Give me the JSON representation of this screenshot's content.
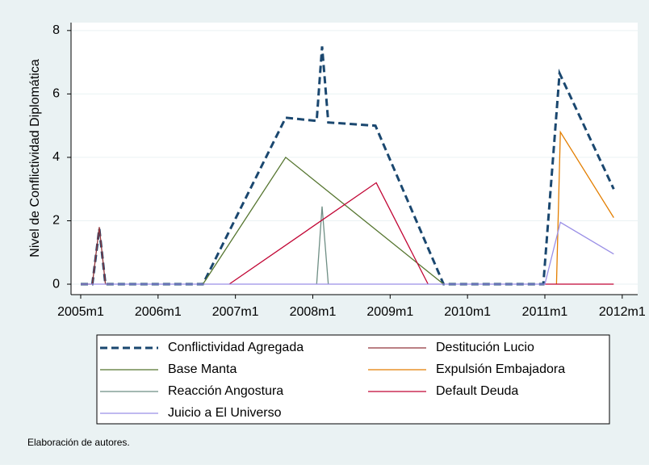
{
  "chart_data": {
    "type": "line",
    "y_label": "Nivel de Conflictividad Diplomática",
    "note": "Elaboración de autores.",
    "xlim": [
      2004.875,
      2012.2
    ],
    "xticks": [
      {
        "value": 2005,
        "label": "2005m1"
      },
      {
        "value": 2006,
        "label": "2006m1"
      },
      {
        "value": 2007,
        "label": "2007m1"
      },
      {
        "value": 2008,
        "label": "2008m1"
      },
      {
        "value": 2009,
        "label": "2009m1"
      },
      {
        "value": 2010,
        "label": "2010m1"
      },
      {
        "value": 2011,
        "label": "2011m1"
      },
      {
        "value": 2012,
        "label": "2012m1"
      }
    ],
    "ylim": [
      -0.33,
      8.25
    ],
    "yticks": [
      0,
      2,
      4,
      6,
      8
    ],
    "grid": true,
    "series": [
      {
        "name": "Conflictividad Agregada",
        "color": "#1a476f",
        "dashed": true,
        "x": [
          2005.0,
          2005.15,
          2005.24,
          2005.32,
          2006.58,
          2007.65,
          2008.05,
          2008.12,
          2008.2,
          2008.81,
          2009.69,
          2010.98,
          2011.19,
          2011.89
        ],
        "values": [
          0,
          0,
          1.75,
          0,
          0,
          5.25,
          5.15,
          7.5,
          5.1,
          5.0,
          0,
          0,
          6.65,
          3.0
        ]
      },
      {
        "name": "Destitución Lucio",
        "color": "#90353b",
        "x": [
          2005.0,
          2005.15,
          2005.24,
          2005.32,
          2005.4
        ],
        "values": [
          0,
          0,
          1.8,
          0,
          0
        ]
      },
      {
        "name": "Base Manta",
        "color": "#55752f",
        "x": [
          2006.58,
          2007.65,
          2009.69
        ],
        "values": [
          0,
          4.0,
          0
        ]
      },
      {
        "name": "Expulsión Embajadora",
        "color": "#e37e00",
        "x": [
          2011.15,
          2011.2,
          2011.89
        ],
        "values": [
          0,
          4.8,
          2.1
        ]
      },
      {
        "name": "Reacción Angostura",
        "color": "#6e8e84",
        "x": [
          2008.05,
          2008.12,
          2008.2
        ],
        "values": [
          0,
          2.45,
          0
        ]
      },
      {
        "name": "Default Deuda",
        "color": "#c10534",
        "x": [
          2006.92,
          2008.82,
          2009.49,
          2010.5,
          2011.0,
          2011.89
        ],
        "values": [
          0,
          3.2,
          0,
          null,
          0,
          0
        ]
      },
      {
        "name": "Juicio a El Universo",
        "color": "#9a8fe6",
        "x": [
          2005.0,
          2011.0,
          2011.2,
          2011.89
        ],
        "values": [
          0,
          0,
          1.95,
          0.95
        ]
      }
    ]
  }
}
